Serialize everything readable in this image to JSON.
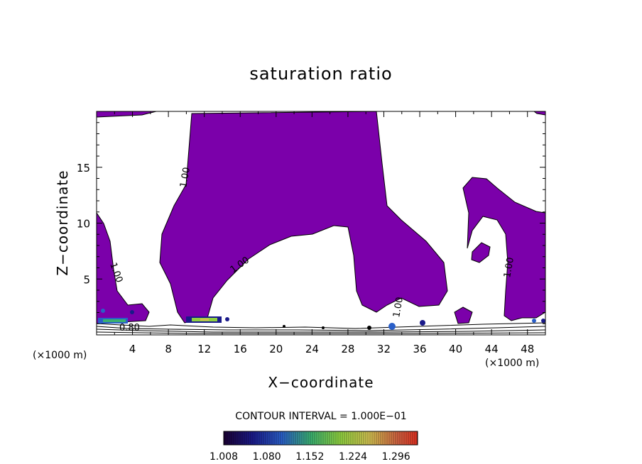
{
  "chart_data": {
    "type": "heatmap",
    "title": "saturation ratio",
    "xlabel": "X−coordinate",
    "ylabel": "Z−coordinate",
    "x_unit_left": "(×1000 m)",
    "x_unit_right": "(×1000 m)",
    "xlim": [
      0,
      50
    ],
    "ylim": [
      0,
      20
    ],
    "x_ticks": [
      4,
      8,
      12,
      16,
      20,
      24,
      28,
      32,
      36,
      40,
      44,
      48
    ],
    "y_ticks": [
      5,
      10,
      15
    ],
    "contour_interval_text": "CONTOUR INTERVAL = 1.000E−01",
    "contour_labels": [
      "1.00",
      "1.00",
      "1.00",
      "1.00",
      "1.00",
      "0.80"
    ],
    "colorbar": {
      "ticks": [
        "1.008",
        "1.080",
        "1.152",
        "1.224",
        "1.296"
      ],
      "range": [
        1.008,
        1.332
      ]
    },
    "fill_color": "#7b00aa",
    "contour_color": "#000000"
  }
}
